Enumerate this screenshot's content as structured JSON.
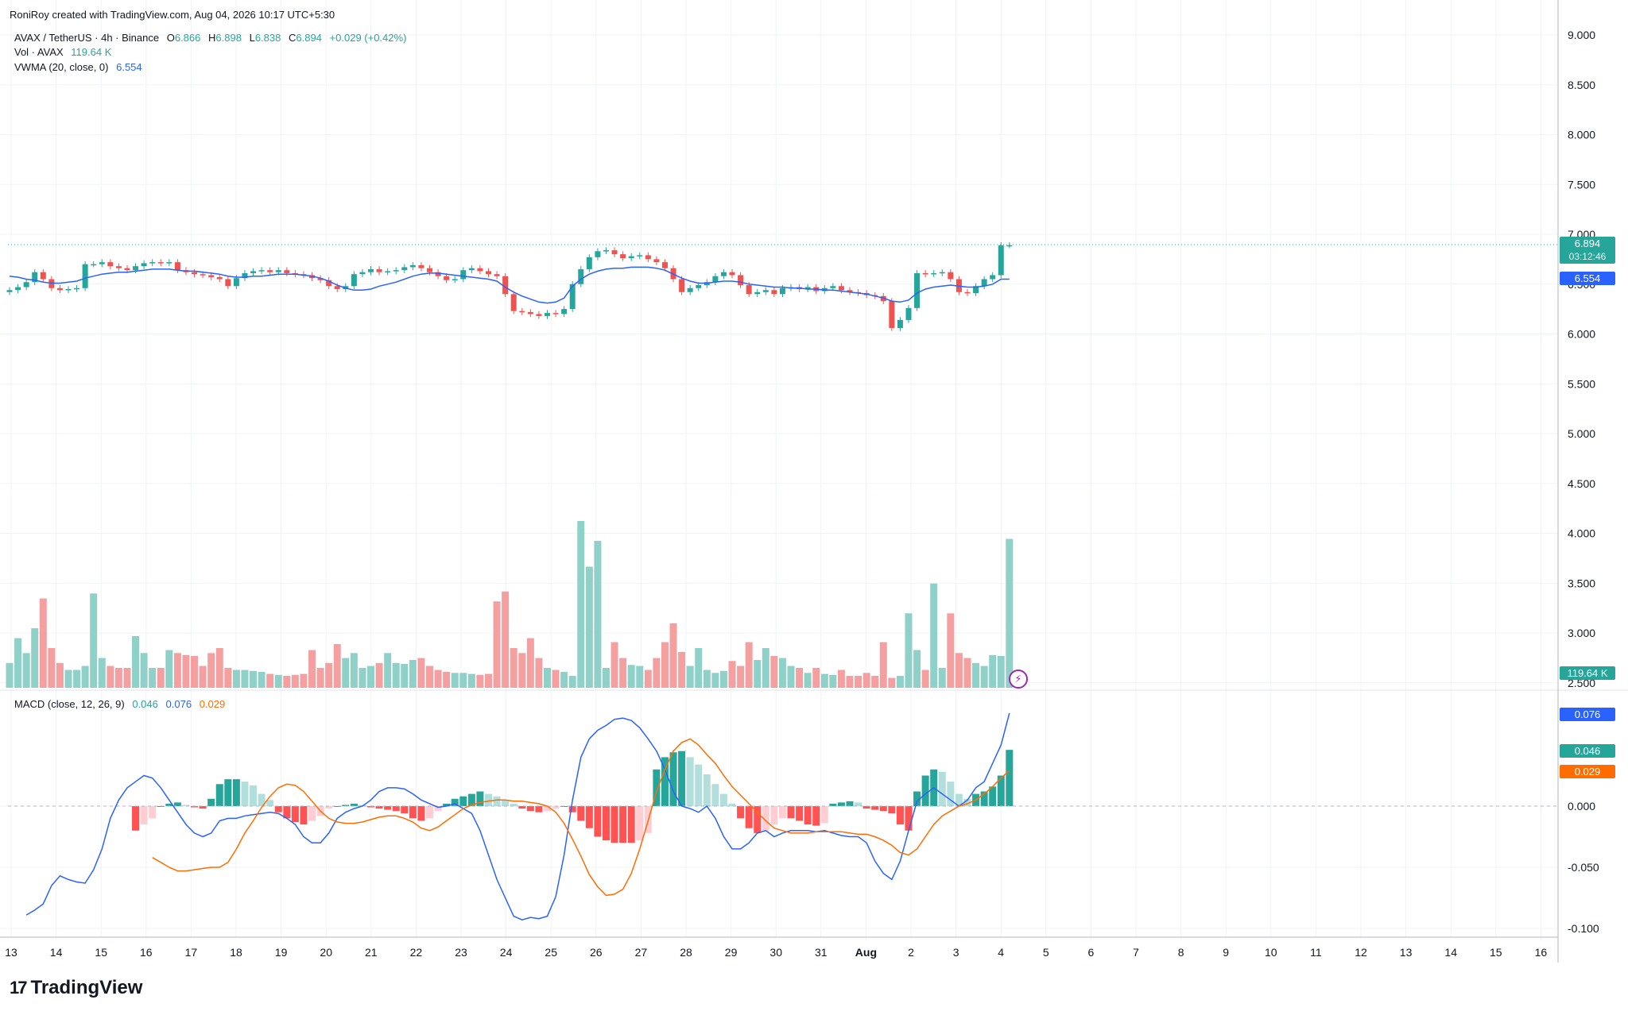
{
  "attribution": "RoniRoy created with TradingView.com, Aug 04, 2026 10:17 UTC+5:30",
  "legend": {
    "symbol": "AVAX / TetherUS · 4h · Binance",
    "open_label": "O",
    "open": "6.866",
    "high_label": "H",
    "high": "6.898",
    "low_label": "L",
    "low": "6.838",
    "close_label": "C",
    "close": "6.894",
    "change": "+0.029 (+0.42%)",
    "vol_label": "Vol · AVAX",
    "vol_value": "119.64 K",
    "vwma_label": "VWMA (20, close, 0)",
    "vwma_value": "6.554",
    "macd_label": "MACD (close, 12, 26, 9)",
    "macd_hist": "0.046",
    "macd_line": "0.076",
    "macd_signal": "0.029"
  },
  "price_tag": {
    "price": "6.894",
    "countdown": "03:12:46",
    "vwma": "6.554",
    "volume": "119.64 K"
  },
  "macd_tags": {
    "macd": "0.076",
    "hist": "0.046",
    "signal": "0.029"
  },
  "colors": {
    "up": "#26a69a",
    "down": "#ef5350",
    "vol_up": "#8fd1c9",
    "vol_down": "#f5a0a0",
    "vwma": "#2962ff",
    "macd": "#2962ff",
    "signal": "#ff6d00",
    "hist_up_strong": "#26a69a",
    "hist_up_weak": "#b2dfdb",
    "hist_down_strong": "#ff5252",
    "hist_down_weak": "#ffcdd2"
  },
  "footer_logo": "TradingView",
  "chart_data": {
    "type": "candlestick",
    "price_axis": {
      "ticks": [
        "9.000",
        "8.500",
        "8.000",
        "7.500",
        "7.000",
        "6.500",
        "6.000",
        "5.500",
        "5.000",
        "4.500",
        "4.000",
        "3.500",
        "3.000",
        "2.500"
      ],
      "range": [
        2.5,
        9.0
      ]
    },
    "macd_axis": {
      "ticks": [
        "0.000",
        "-0.050",
        "-0.100"
      ],
      "range": [
        -0.1,
        0.076
      ]
    },
    "x_ticks": [
      "13",
      "14",
      "15",
      "16",
      "17",
      "18",
      "19",
      "20",
      "21",
      "22",
      "23",
      "24",
      "25",
      "26",
      "27",
      "28",
      "29",
      "30",
      "31",
      "Aug",
      "2",
      "3",
      "4",
      "5",
      "6",
      "7",
      "8",
      "9",
      "10",
      "11",
      "12",
      "13",
      "14",
      "15",
      "16"
    ],
    "candles_close": [
      6.44,
      6.47,
      6.52,
      6.62,
      6.55,
      6.46,
      6.44,
      6.45,
      6.46,
      6.7,
      6.7,
      6.72,
      6.68,
      6.66,
      6.64,
      6.68,
      6.71,
      6.72,
      6.71,
      6.72,
      6.64,
      6.62,
      6.6,
      6.59,
      6.57,
      6.55,
      6.48,
      6.56,
      6.61,
      6.63,
      6.64,
      6.62,
      6.64,
      6.61,
      6.6,
      6.59,
      6.56,
      6.54,
      6.48,
      6.45,
      6.48,
      6.6,
      6.62,
      6.65,
      6.62,
      6.63,
      6.64,
      6.67,
      6.69,
      6.66,
      6.62,
      6.58,
      6.54,
      6.55,
      6.64,
      6.66,
      6.63,
      6.6,
      6.58,
      6.4,
      6.23,
      6.22,
      6.2,
      6.18,
      6.21,
      6.2,
      6.25,
      6.5,
      6.65,
      6.77,
      6.83,
      6.84,
      6.8,
      6.76,
      6.78,
      6.79,
      6.75,
      6.72,
      6.66,
      6.55,
      6.42,
      6.46,
      6.49,
      6.52,
      6.58,
      6.62,
      6.59,
      6.49,
      6.4,
      6.42,
      6.44,
      6.4,
      6.46,
      6.47,
      6.45,
      6.47,
      6.43,
      6.46,
      6.48,
      6.44,
      6.42,
      6.41,
      6.39,
      6.38,
      6.33,
      6.06,
      6.14,
      6.26,
      6.61,
      6.6,
      6.61,
      6.62,
      6.55,
      6.42,
      6.41,
      6.48,
      6.55,
      6.59,
      6.89,
      6.89
    ],
    "vwma": [
      6.58,
      6.57,
      6.55,
      6.54,
      6.52,
      6.51,
      6.51,
      6.52,
      6.53,
      6.56,
      6.58,
      6.6,
      6.61,
      6.62,
      6.62,
      6.63,
      6.64,
      6.65,
      6.65,
      6.65,
      6.64,
      6.63,
      6.63,
      6.62,
      6.61,
      6.6,
      6.58,
      6.57,
      6.57,
      6.58,
      6.58,
      6.59,
      6.6,
      6.6,
      6.6,
      6.59,
      6.58,
      6.56,
      6.53,
      6.49,
      6.46,
      6.44,
      6.44,
      6.45,
      6.48,
      6.5,
      6.52,
      6.55,
      6.58,
      6.6,
      6.61,
      6.61,
      6.6,
      6.59,
      6.58,
      6.57,
      6.56,
      6.55,
      6.53,
      6.47,
      6.42,
      6.38,
      6.35,
      6.32,
      6.31,
      6.32,
      6.36,
      6.48,
      6.55,
      6.6,
      6.63,
      6.65,
      6.66,
      6.66,
      6.67,
      6.67,
      6.67,
      6.66,
      6.64,
      6.6,
      6.56,
      6.53,
      6.51,
      6.51,
      6.52,
      6.53,
      6.53,
      6.52,
      6.5,
      6.49,
      6.48,
      6.47,
      6.47,
      6.46,
      6.46,
      6.45,
      6.45,
      6.44,
      6.44,
      6.43,
      6.42,
      6.41,
      6.4,
      6.38,
      6.36,
      6.33,
      6.32,
      6.34,
      6.41,
      6.45,
      6.47,
      6.48,
      6.49,
      6.48,
      6.47,
      6.47,
      6.48,
      6.5,
      6.55,
      6.55
    ],
    "volumes": [
      25,
      50,
      35,
      60,
      90,
      40,
      25,
      18,
      18,
      22,
      95,
      30,
      22,
      20,
      20,
      52,
      35,
      20,
      20,
      38,
      35,
      33,
      32,
      22,
      35,
      40,
      20,
      18,
      18,
      17,
      16,
      14,
      13,
      12,
      13,
      14,
      38,
      20,
      25,
      44,
      30,
      35,
      20,
      22,
      25,
      35,
      25,
      24,
      28,
      30,
      22,
      18,
      16,
      15,
      15,
      14,
      13,
      14,
      87,
      97,
      40,
      35,
      50,
      30,
      20,
      18,
      16,
      12,
      168,
      122,
      148,
      20,
      46,
      30,
      23,
      22,
      18,
      30,
      46,
      65,
      36,
      22,
      40,
      18,
      15,
      17,
      27,
      22,
      46,
      28,
      40,
      32,
      30,
      22,
      20,
      15,
      20,
      14,
      13,
      18,
      12,
      12,
      15,
      12,
      46,
      10,
      12,
      75,
      38,
      18,
      105,
      20,
      75,
      35,
      30,
      25,
      22,
      33,
      32,
      150
    ],
    "macd": [
      -0.089,
      -0.085,
      -0.08,
      -0.065,
      -0.057,
      -0.06,
      -0.062,
      -0.063,
      -0.052,
      -0.035,
      -0.01,
      0.005,
      0.015,
      0.02,
      0.025,
      0.023,
      0.015,
      0.005,
      -0.005,
      -0.015,
      -0.022,
      -0.025,
      -0.022,
      -0.012,
      -0.01,
      -0.01,
      -0.008,
      -0.007,
      -0.006,
      -0.005,
      -0.006,
      -0.01,
      -0.015,
      -0.025,
      -0.03,
      -0.03,
      -0.022,
      -0.01,
      -0.005,
      -0.002,
      0.0,
      0.005,
      0.012,
      0.015,
      0.015,
      0.014,
      0.01,
      0.005,
      0.002,
      -0.001,
      0.0,
      0.002,
      -0.002,
      -0.006,
      -0.02,
      -0.04,
      -0.06,
      -0.075,
      -0.09,
      -0.093,
      -0.091,
      -0.092,
      -0.09,
      -0.074,
      -0.04,
      0.005,
      0.04,
      0.055,
      0.062,
      0.066,
      0.071,
      0.072,
      0.07,
      0.064,
      0.055,
      0.045,
      0.03,
      0.012,
      0.0,
      -0.002,
      -0.005,
      0.0,
      -0.01,
      -0.025,
      -0.035,
      -0.035,
      -0.03,
      -0.022,
      -0.02,
      -0.025,
      -0.022,
      -0.02,
      -0.02,
      -0.02,
      -0.021,
      -0.02,
      -0.022,
      -0.024,
      -0.025,
      -0.025,
      -0.03,
      -0.045,
      -0.055,
      -0.06,
      -0.045,
      -0.02,
      0.004,
      0.01,
      0.015,
      0.01,
      0.005,
      0.0,
      0.005,
      0.015,
      0.02,
      0.035,
      0.05,
      0.076
    ],
    "signal": [
      -0.042,
      -0.046,
      -0.05,
      -0.053,
      -0.053,
      -0.052,
      -0.051,
      -0.05,
      -0.05,
      -0.046,
      -0.035,
      -0.022,
      -0.012,
      -0.001,
      0.008,
      0.015,
      0.018,
      0.017,
      0.012,
      0.004,
      -0.004,
      -0.01,
      -0.013,
      -0.014,
      -0.014,
      -0.013,
      -0.011,
      -0.009,
      -0.008,
      -0.008,
      -0.01,
      -0.013,
      -0.018,
      -0.02,
      -0.017,
      -0.012,
      -0.007,
      -0.002,
      0.001,
      0.003,
      0.004,
      0.005,
      0.005,
      0.004,
      0.004,
      0.003,
      0.002,
      0.0,
      -0.005,
      -0.014,
      -0.027,
      -0.041,
      -0.056,
      -0.066,
      -0.073,
      -0.072,
      -0.068,
      -0.055,
      -0.035,
      -0.012,
      0.012,
      0.03,
      0.045,
      0.052,
      0.055,
      0.05,
      0.042,
      0.035,
      0.025,
      0.016,
      0.009,
      0.002,
      -0.005,
      -0.012,
      -0.018,
      -0.02,
      -0.022,
      -0.022,
      -0.022,
      -0.021,
      -0.021,
      -0.021,
      -0.021,
      -0.022,
      -0.023,
      -0.023,
      -0.025,
      -0.028,
      -0.032,
      -0.038,
      -0.04,
      -0.035,
      -0.025,
      -0.015,
      -0.008,
      -0.004,
      0.0,
      0.002,
      0.005,
      0.01,
      0.016,
      0.023,
      0.029
    ],
    "histogram": [
      -0.02,
      -0.015,
      -0.01,
      0.0,
      0.002,
      0.003,
      0.001,
      -0.001,
      -0.002,
      0.006,
      0.018,
      0.022,
      0.022,
      0.02,
      0.017,
      0.01,
      0.005,
      -0.005,
      -0.01,
      -0.013,
      -0.015,
      -0.012,
      -0.008,
      -0.002,
      0.0,
      0.001,
      0.002,
      0.001,
      -0.001,
      -0.002,
      -0.003,
      -0.004,
      -0.006,
      -0.01,
      -0.012,
      -0.01,
      -0.004,
      0.002,
      0.006,
      0.008,
      0.01,
      0.012,
      0.01,
      0.008,
      0.005,
      0.002,
      -0.002,
      -0.004,
      -0.005,
      -0.004,
      -0.002,
      0.0,
      -0.005,
      -0.012,
      -0.018,
      -0.025,
      -0.028,
      -0.03,
      -0.03,
      -0.03,
      -0.028,
      -0.022,
      0.03,
      0.04,
      0.044,
      0.045,
      0.04,
      0.034,
      0.026,
      0.018,
      0.01,
      0.002,
      -0.01,
      -0.018,
      -0.022,
      -0.02,
      -0.015,
      -0.01,
      -0.01,
      -0.012,
      -0.015,
      -0.016,
      -0.014,
      0.002,
      0.003,
      0.004,
      0.003,
      -0.002,
      -0.003,
      -0.004,
      -0.006,
      -0.015,
      -0.02,
      0.012,
      0.025,
      0.03,
      0.028,
      0.02,
      0.01,
      0.006,
      0.01,
      0.012,
      0.016,
      0.025,
      0.046
    ]
  }
}
